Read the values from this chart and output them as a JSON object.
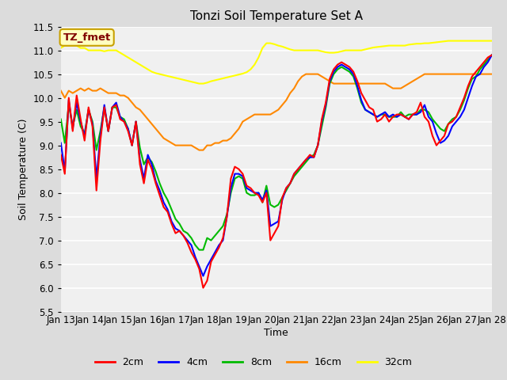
{
  "title": "Tonzi Soil Temperature Set A",
  "xlabel": "Time",
  "ylabel": "Soil Temperature (C)",
  "ylim": [
    5.5,
    11.5
  ],
  "fig_color": "#dcdcdc",
  "plot_bg_color": "#f0f0f0",
  "annotation_text": "TZ_fmet",
  "annotation_bg": "#ffffc0",
  "annotation_border": "#c8a000",
  "annotation_text_color": "#800000",
  "tick_labels": [
    "Jan 13",
    "Jan 14",
    "Jan 15",
    "Jan 16",
    "Jan 17",
    "Jan 18",
    "Jan 19",
    "Jan 20",
    "Jan 21",
    "Jan 22",
    "Jan 23",
    "Jan 24",
    "Jan 25",
    "Jan 26",
    "Jan 27",
    "Jan 28"
  ],
  "line_colors": {
    "2cm": "#ff0000",
    "4cm": "#0000ff",
    "8cm": "#00bb00",
    "16cm": "#ff8800",
    "32cm": "#ffff00"
  },
  "data_2cm": [
    8.8,
    8.4,
    10.0,
    9.3,
    10.05,
    9.55,
    9.1,
    9.8,
    9.4,
    8.05,
    9.1,
    9.8,
    9.3,
    9.8,
    9.85,
    9.55,
    9.5,
    9.3,
    9.0,
    9.5,
    8.6,
    8.2,
    8.7,
    8.5,
    8.2,
    7.95,
    7.7,
    7.6,
    7.35,
    7.15,
    7.2,
    7.1,
    6.95,
    6.75,
    6.6,
    6.4,
    6.0,
    6.15,
    6.55,
    6.7,
    6.85,
    7.05,
    7.5,
    8.3,
    8.55,
    8.5,
    8.4,
    8.15,
    8.1,
    8.0,
    7.95,
    7.8,
    8.0,
    7.0,
    7.15,
    7.3,
    7.9,
    8.1,
    8.2,
    8.4,
    8.5,
    8.6,
    8.7,
    8.8,
    8.75,
    9.0,
    9.55,
    9.9,
    10.4,
    10.6,
    10.7,
    10.75,
    10.7,
    10.65,
    10.55,
    10.35,
    10.1,
    9.95,
    9.8,
    9.75,
    9.5,
    9.55,
    9.65,
    9.5,
    9.6,
    9.65,
    9.65,
    9.6,
    9.55,
    9.65,
    9.7,
    9.9,
    9.6,
    9.5,
    9.2,
    9.0,
    9.1,
    9.2,
    9.45,
    9.5,
    9.6,
    9.8,
    10.0,
    10.25,
    10.45,
    10.55,
    10.65,
    10.75,
    10.85,
    10.9
  ],
  "data_4cm": [
    9.05,
    8.45,
    9.95,
    9.35,
    9.9,
    9.5,
    9.2,
    9.75,
    9.45,
    8.3,
    9.2,
    9.85,
    9.3,
    9.8,
    9.9,
    9.6,
    9.5,
    9.35,
    9.0,
    9.5,
    8.7,
    8.3,
    8.8,
    8.6,
    8.25,
    8.05,
    7.8,
    7.65,
    7.4,
    7.25,
    7.2,
    7.1,
    7.0,
    6.9,
    6.65,
    6.45,
    6.25,
    6.45,
    6.6,
    6.75,
    6.9,
    7.0,
    7.5,
    8.1,
    8.4,
    8.4,
    8.35,
    8.1,
    8.05,
    8.0,
    8.0,
    7.85,
    8.05,
    7.3,
    7.35,
    7.4,
    7.85,
    8.1,
    8.2,
    8.4,
    8.5,
    8.6,
    8.7,
    8.75,
    8.75,
    9.0,
    9.5,
    9.85,
    10.35,
    10.55,
    10.65,
    10.7,
    10.65,
    10.6,
    10.5,
    10.25,
    9.95,
    9.75,
    9.7,
    9.65,
    9.6,
    9.65,
    9.7,
    9.6,
    9.65,
    9.6,
    9.65,
    9.6,
    9.55,
    9.65,
    9.65,
    9.7,
    9.85,
    9.6,
    9.5,
    9.25,
    9.05,
    9.1,
    9.2,
    9.4,
    9.5,
    9.6,
    9.75,
    10.0,
    10.25,
    10.45,
    10.5,
    10.65,
    10.75,
    10.9
  ],
  "data_8cm": [
    9.55,
    9.05,
    9.85,
    9.4,
    9.75,
    9.4,
    9.25,
    9.75,
    9.5,
    8.9,
    9.3,
    9.8,
    9.3,
    9.8,
    9.8,
    9.6,
    9.55,
    9.35,
    9.0,
    9.5,
    8.95,
    8.6,
    8.75,
    8.65,
    8.45,
    8.2,
    8.0,
    7.85,
    7.65,
    7.45,
    7.35,
    7.2,
    7.15,
    7.05,
    6.9,
    6.8,
    6.8,
    7.05,
    7.0,
    7.1,
    7.2,
    7.3,
    7.55,
    8.0,
    8.3,
    8.35,
    8.3,
    8.0,
    7.95,
    7.95,
    8.0,
    7.8,
    8.15,
    7.75,
    7.7,
    7.75,
    7.9,
    8.05,
    8.2,
    8.35,
    8.45,
    8.55,
    8.65,
    8.75,
    8.8,
    9.0,
    9.4,
    9.8,
    10.3,
    10.5,
    10.6,
    10.65,
    10.6,
    10.55,
    10.45,
    10.2,
    9.9,
    9.75,
    9.7,
    9.65,
    9.6,
    9.65,
    9.65,
    9.6,
    9.6,
    9.6,
    9.7,
    9.6,
    9.65,
    9.65,
    9.65,
    9.75,
    9.75,
    9.7,
    9.55,
    9.45,
    9.35,
    9.3,
    9.45,
    9.55,
    9.6,
    9.75,
    9.95,
    10.2,
    10.4,
    10.45,
    10.6,
    10.7,
    10.8,
    10.9
  ],
  "data_16cm": [
    10.15,
    10.0,
    10.15,
    10.1,
    10.15,
    10.2,
    10.15,
    10.2,
    10.15,
    10.15,
    10.2,
    10.15,
    10.1,
    10.1,
    10.1,
    10.05,
    10.05,
    10.0,
    9.9,
    9.8,
    9.75,
    9.65,
    9.55,
    9.45,
    9.35,
    9.25,
    9.15,
    9.1,
    9.05,
    9.0,
    9.0,
    9.0,
    9.0,
    9.0,
    8.95,
    8.9,
    8.9,
    9.0,
    9.0,
    9.05,
    9.05,
    9.1,
    9.1,
    9.15,
    9.25,
    9.35,
    9.5,
    9.55,
    9.6,
    9.65,
    9.65,
    9.65,
    9.65,
    9.65,
    9.7,
    9.75,
    9.85,
    9.95,
    10.1,
    10.2,
    10.35,
    10.45,
    10.5,
    10.5,
    10.5,
    10.5,
    10.45,
    10.4,
    10.35,
    10.3,
    10.3,
    10.3,
    10.3,
    10.3,
    10.3,
    10.3,
    10.3,
    10.3,
    10.3,
    10.3,
    10.3,
    10.3,
    10.3,
    10.25,
    10.2,
    10.2,
    10.2,
    10.25,
    10.3,
    10.35,
    10.4,
    10.45,
    10.5,
    10.5,
    10.5,
    10.5,
    10.5,
    10.5,
    10.5,
    10.5,
    10.5,
    10.5,
    10.5,
    10.5,
    10.5,
    10.5,
    10.5,
    10.5,
    10.5,
    10.5
  ],
  "data_32cm": [
    11.05,
    11.1,
    11.1,
    11.1,
    11.1,
    11.05,
    11.05,
    11.0,
    11.0,
    11.0,
    11.0,
    10.98,
    11.0,
    11.0,
    11.0,
    10.95,
    10.9,
    10.85,
    10.8,
    10.75,
    10.7,
    10.65,
    10.6,
    10.55,
    10.52,
    10.5,
    10.48,
    10.46,
    10.44,
    10.42,
    10.4,
    10.38,
    10.36,
    10.34,
    10.32,
    10.3,
    10.3,
    10.32,
    10.35,
    10.37,
    10.39,
    10.41,
    10.43,
    10.45,
    10.47,
    10.49,
    10.51,
    10.54,
    10.6,
    10.7,
    10.85,
    11.05,
    11.15,
    11.15,
    11.13,
    11.1,
    11.08,
    11.05,
    11.02,
    11.0,
    11.0,
    11.0,
    11.0,
    11.0,
    11.0,
    11.0,
    10.98,
    10.96,
    10.95,
    10.95,
    10.96,
    10.98,
    11.0,
    11.0,
    11.0,
    11.0,
    11.0,
    11.02,
    11.04,
    11.06,
    11.07,
    11.08,
    11.09,
    11.1,
    11.1,
    11.1,
    11.1,
    11.1,
    11.12,
    11.13,
    11.14,
    11.14,
    11.15,
    11.15,
    11.16,
    11.17,
    11.18,
    11.19,
    11.2,
    11.2,
    11.2,
    11.2,
    11.2,
    11.2,
    11.2,
    11.2,
    11.2,
    11.2,
    11.2,
    11.2
  ]
}
